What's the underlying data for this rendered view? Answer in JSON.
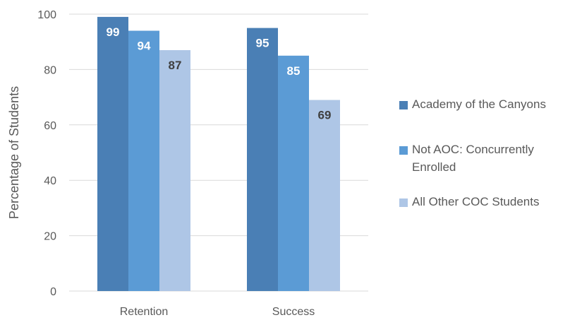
{
  "chart_data": {
    "type": "bar",
    "title": "",
    "xlabel": "",
    "ylabel": "Percentage of Students",
    "ylim": [
      0,
      100
    ],
    "yticks": [
      0,
      20,
      40,
      60,
      80,
      100
    ],
    "grid": true,
    "legend_position": "right",
    "categories": [
      "Retention",
      "Success"
    ],
    "series": [
      {
        "name": "Academy of the Canyons",
        "values": [
          99,
          95
        ],
        "color": "#4a7fb5",
        "label_color": "#ffffff"
      },
      {
        "name": "Not AOC: Concurrently Enrolled",
        "values": [
          94,
          85
        ],
        "color": "#5b9bd5",
        "label_color": "#ffffff"
      },
      {
        "name": "All Other COC Students",
        "values": [
          87,
          69
        ],
        "color": "#aec6e6",
        "label_color": "#404040"
      }
    ]
  }
}
